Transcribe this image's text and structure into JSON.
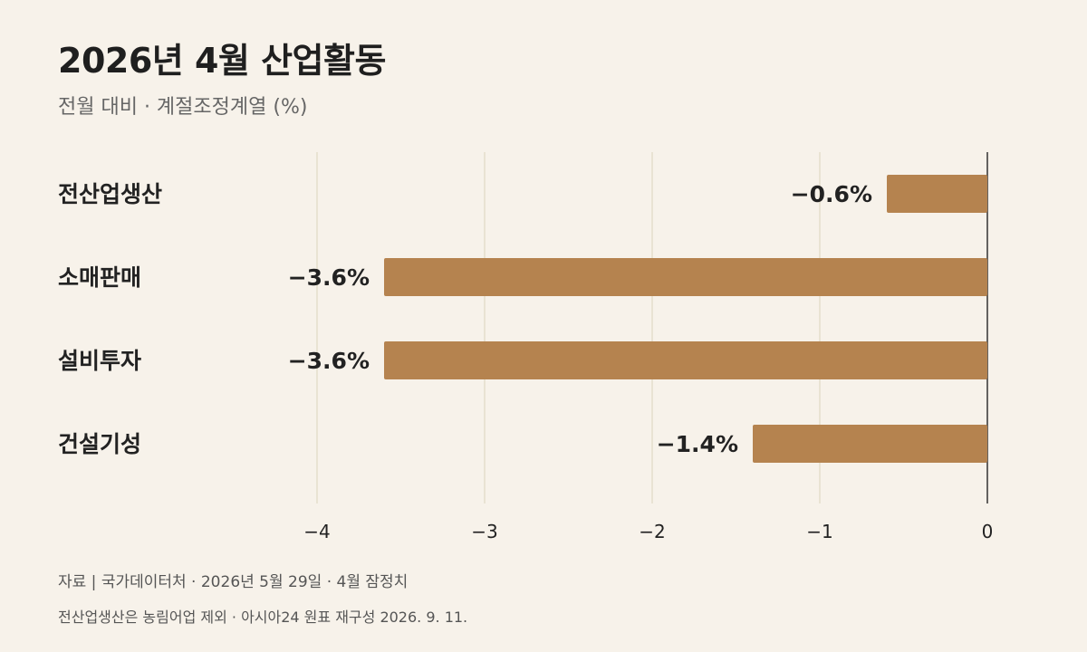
{
  "header": {
    "title": "2026년 4월 산업활동",
    "subtitle": "전월 대비 · 계절조정계열 (%)"
  },
  "footer": {
    "source": "자료 | 국가데이터처 · 2026년 5월 29일 · 4월 잠정치",
    "note": "전산업생산은 농림어업 제외 · 아시아24 원표 재구성 2026. 9. 11."
  },
  "chart_data": {
    "type": "bar",
    "orientation": "horizontal",
    "categories": [
      "전산업생산",
      "소매판매",
      "설비투자",
      "건설기성"
    ],
    "values": [
      -0.6,
      -3.6,
      -3.6,
      -1.4
    ],
    "value_labels": [
      "−0.6%",
      "−3.6%",
      "−3.6%",
      "−1.4%"
    ],
    "xlim": [
      -4,
      0
    ],
    "xticks": [
      -4,
      -3,
      -2,
      -1,
      0
    ],
    "xtick_labels": [
      "−4",
      "−3",
      "−2",
      "−1",
      "0"
    ],
    "grid": true,
    "colors": {
      "bar": "#b5834f",
      "grid": "#e9e3d3",
      "axis": "#333333",
      "label": "#222222",
      "tick": "#222222"
    }
  }
}
